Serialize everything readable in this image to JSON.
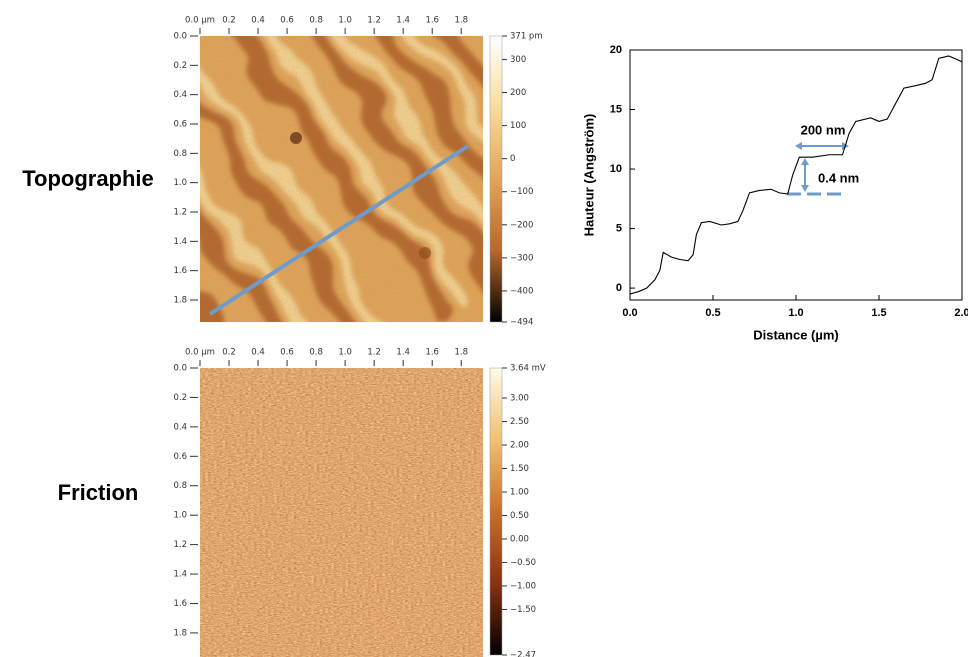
{
  "labels": {
    "topography": "Topographie",
    "friction": "Friction"
  },
  "chart_data": [
    {
      "type": "image",
      "xlim": [
        0,
        1.95
      ],
      "ylim": [
        0,
        1.95
      ],
      "xticks": [
        {
          "value": 0,
          "label": "0.0 µm"
        },
        {
          "value": 0.2,
          "label": "0.2"
        },
        {
          "value": 0.4,
          "label": "0.4"
        },
        {
          "value": 0.6,
          "label": "0.6"
        },
        {
          "value": 0.8,
          "label": "0.8"
        },
        {
          "value": 1,
          "label": "1.0"
        },
        {
          "value": 1.2,
          "label": "1.2"
        },
        {
          "value": 1.4,
          "label": "1.4"
        },
        {
          "value": 1.6,
          "label": "1.6"
        },
        {
          "value": 1.8,
          "label": "1.8"
        }
      ],
      "yticks": [
        {
          "value": 0,
          "label": "0.0"
        },
        {
          "value": 0.2,
          "label": "0.2"
        },
        {
          "value": 0.4,
          "label": "0.4"
        },
        {
          "value": 0.6,
          "label": "0.6"
        },
        {
          "value": 0.8,
          "label": "0.8"
        },
        {
          "value": 1,
          "label": "1.0"
        },
        {
          "value": 1.2,
          "label": "1.2"
        },
        {
          "value": 1.4,
          "label": "1.4"
        },
        {
          "value": 1.6,
          "label": "1.6"
        },
        {
          "value": 1.8,
          "label": "1.8"
        }
      ],
      "colorbar_lim": [
        -494,
        371
      ],
      "colorbar_ticks": [
        {
          "value": 371,
          "label": "371 pm"
        },
        300,
        200,
        100,
        0,
        {
          "value": -100,
          "label": "−100"
        },
        {
          "value": -200,
          "label": "−200"
        },
        {
          "value": -300,
          "label": "−300"
        },
        {
          "value": -400,
          "label": "−400"
        },
        {
          "value": -494,
          "label": "−494"
        }
      ],
      "colormap": [
        "#ffffff",
        "#f8dc9a",
        "#e2a458",
        "#b8682c",
        "#000000"
      ]
    },
    {
      "type": "image",
      "xlim": [
        0,
        1.95
      ],
      "ylim": [
        0,
        1.95
      ],
      "xticks": [
        {
          "value": 0,
          "label": "0.0 µm"
        },
        {
          "value": 0.2,
          "label": "0.2"
        },
        {
          "value": 0.4,
          "label": "0.4"
        },
        {
          "value": 0.6,
          "label": "0.6"
        },
        {
          "value": 0.8,
          "label": "0.8"
        },
        {
          "value": 1,
          "label": "1.0"
        },
        {
          "value": 1.2,
          "label": "1.2"
        },
        {
          "value": 1.4,
          "label": "1.4"
        },
        {
          "value": 1.6,
          "label": "1.6"
        },
        {
          "value": 1.8,
          "label": "1.8"
        }
      ],
      "yticks": [
        {
          "value": 0,
          "label": "0.0"
        },
        {
          "value": 0.2,
          "label": "0.2"
        },
        {
          "value": 0.4,
          "label": "0.4"
        },
        {
          "value": 0.6,
          "label": "0.6"
        },
        {
          "value": 0.8,
          "label": "0.8"
        },
        {
          "value": 1,
          "label": "1.0"
        },
        {
          "value": 1.2,
          "label": "1.2"
        },
        {
          "value": 1.4,
          "label": "1.4"
        },
        {
          "value": 1.6,
          "label": "1.6"
        },
        {
          "value": 1.8,
          "label": "1.8"
        }
      ],
      "colorbar_lim": [
        -2.47,
        3.64
      ],
      "colorbar_ticks": [
        {
          "value": 3.64,
          "label": "3.64 mV"
        },
        {
          "value": 3,
          "label": "3.00"
        },
        {
          "value": 2.5,
          "label": "2.50"
        },
        {
          "value": 2,
          "label": "2.00"
        },
        {
          "value": 1.5,
          "label": "1.50"
        },
        {
          "value": 1,
          "label": "1.00"
        },
        {
          "value": 0.5,
          "label": "0.50"
        },
        {
          "value": 0,
          "label": "0.00"
        },
        {
          "value": -0.5,
          "label": "−0.50"
        },
        {
          "value": -1,
          "label": "−1.00"
        },
        {
          "value": -1.5,
          "label": "−1.50"
        },
        {
          "value": -2.47,
          "label": "−2.47"
        }
      ],
      "colormap": [
        "#fffbe8",
        "#f0c070",
        "#c8702a",
        "#8a3010",
        "#000000"
      ]
    },
    {
      "type": "line",
      "xlabel": "Distance (µm)",
      "ylabel": "Hauteur (Angström)",
      "xlim": [
        0,
        2
      ],
      "ylim": [
        -1,
        20
      ],
      "xticks": [
        {
          "value": 0,
          "label": "0.0"
        },
        {
          "value": 0.5,
          "label": "0.5"
        },
        {
          "value": 1,
          "label": "1.0"
        },
        {
          "value": 1.5,
          "label": "1.5"
        },
        {
          "value": 2,
          "label": "2.0"
        }
      ],
      "yticks": [
        0,
        5,
        10,
        15,
        20
      ],
      "annotations": [
        "200 nm",
        "0.4 nm"
      ],
      "series": [
        {
          "color": "#000000",
          "x": [
            0,
            0.05,
            0.1,
            0.15,
            0.18,
            0.2,
            0.25,
            0.3,
            0.35,
            0.38,
            0.4,
            0.43,
            0.48,
            0.55,
            0.6,
            0.65,
            0.68,
            0.72,
            0.78,
            0.85,
            0.9,
            0.95,
            0.98,
            1.02,
            1.1,
            1.2,
            1.28,
            1.32,
            1.36,
            1.45,
            1.5,
            1.55,
            1.6,
            1.65,
            1.72,
            1.78,
            1.82,
            1.86,
            1.92,
            1.97,
            2
          ],
          "values": [
            -0.5,
            -0.3,
            0,
            0.7,
            1.5,
            3,
            2.6,
            2.4,
            2.3,
            2.8,
            4.5,
            5.5,
            5.6,
            5.3,
            5.4,
            5.6,
            6.5,
            8,
            8.2,
            8.3,
            8,
            7.9,
            9.5,
            11,
            11,
            11.2,
            11.2,
            13,
            14,
            14.3,
            14,
            14.2,
            15.5,
            16.8,
            17,
            17.2,
            17.5,
            19.3,
            19.5,
            19.2,
            19
          ]
        }
      ]
    }
  ]
}
